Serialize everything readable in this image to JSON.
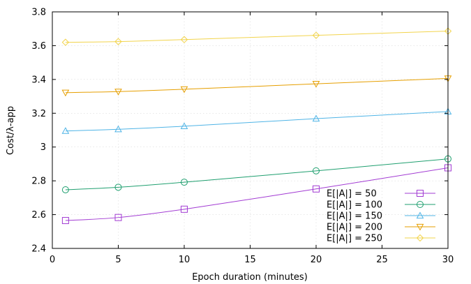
{
  "chart_data": {
    "type": "line",
    "xlabel": "Epoch duration (minutes)",
    "ylabel": "Cost/λ-app",
    "xlim": [
      0,
      30
    ],
    "ylim": [
      2.4,
      3.8
    ],
    "xticks": [
      "0",
      "5",
      "10",
      "15",
      "20",
      "25",
      "30"
    ],
    "yticks": [
      "2.4",
      "2.6",
      "2.8",
      "3",
      "3.2",
      "3.4",
      "3.6",
      "3.8"
    ],
    "grid": true,
    "legend_position": "bottom-right",
    "x": [
      1,
      5,
      10,
      20,
      30
    ],
    "series": [
      {
        "name": "E[|A|] = 50",
        "marker": "square",
        "color": "#a23bd3",
        "values": [
          2.565,
          2.583,
          2.632,
          2.752,
          2.877
        ]
      },
      {
        "name": "E[|A|] = 100",
        "marker": "circle",
        "color": "#1f9f6f",
        "values": [
          2.747,
          2.762,
          2.792,
          2.859,
          2.93
        ]
      },
      {
        "name": "E[|A|] = 150",
        "marker": "triangle-up",
        "color": "#4fb4e6",
        "values": [
          3.095,
          3.105,
          3.123,
          3.168,
          3.21
        ]
      },
      {
        "name": "E[|A|] = 200",
        "marker": "triangle-down",
        "color": "#e69f00",
        "values": [
          3.322,
          3.328,
          3.342,
          3.374,
          3.406
        ]
      },
      {
        "name": "E[|A|] = 250",
        "marker": "diamond",
        "color": "#f2d44c",
        "values": [
          3.62,
          3.624,
          3.636,
          3.661,
          3.686
        ]
      }
    ]
  }
}
